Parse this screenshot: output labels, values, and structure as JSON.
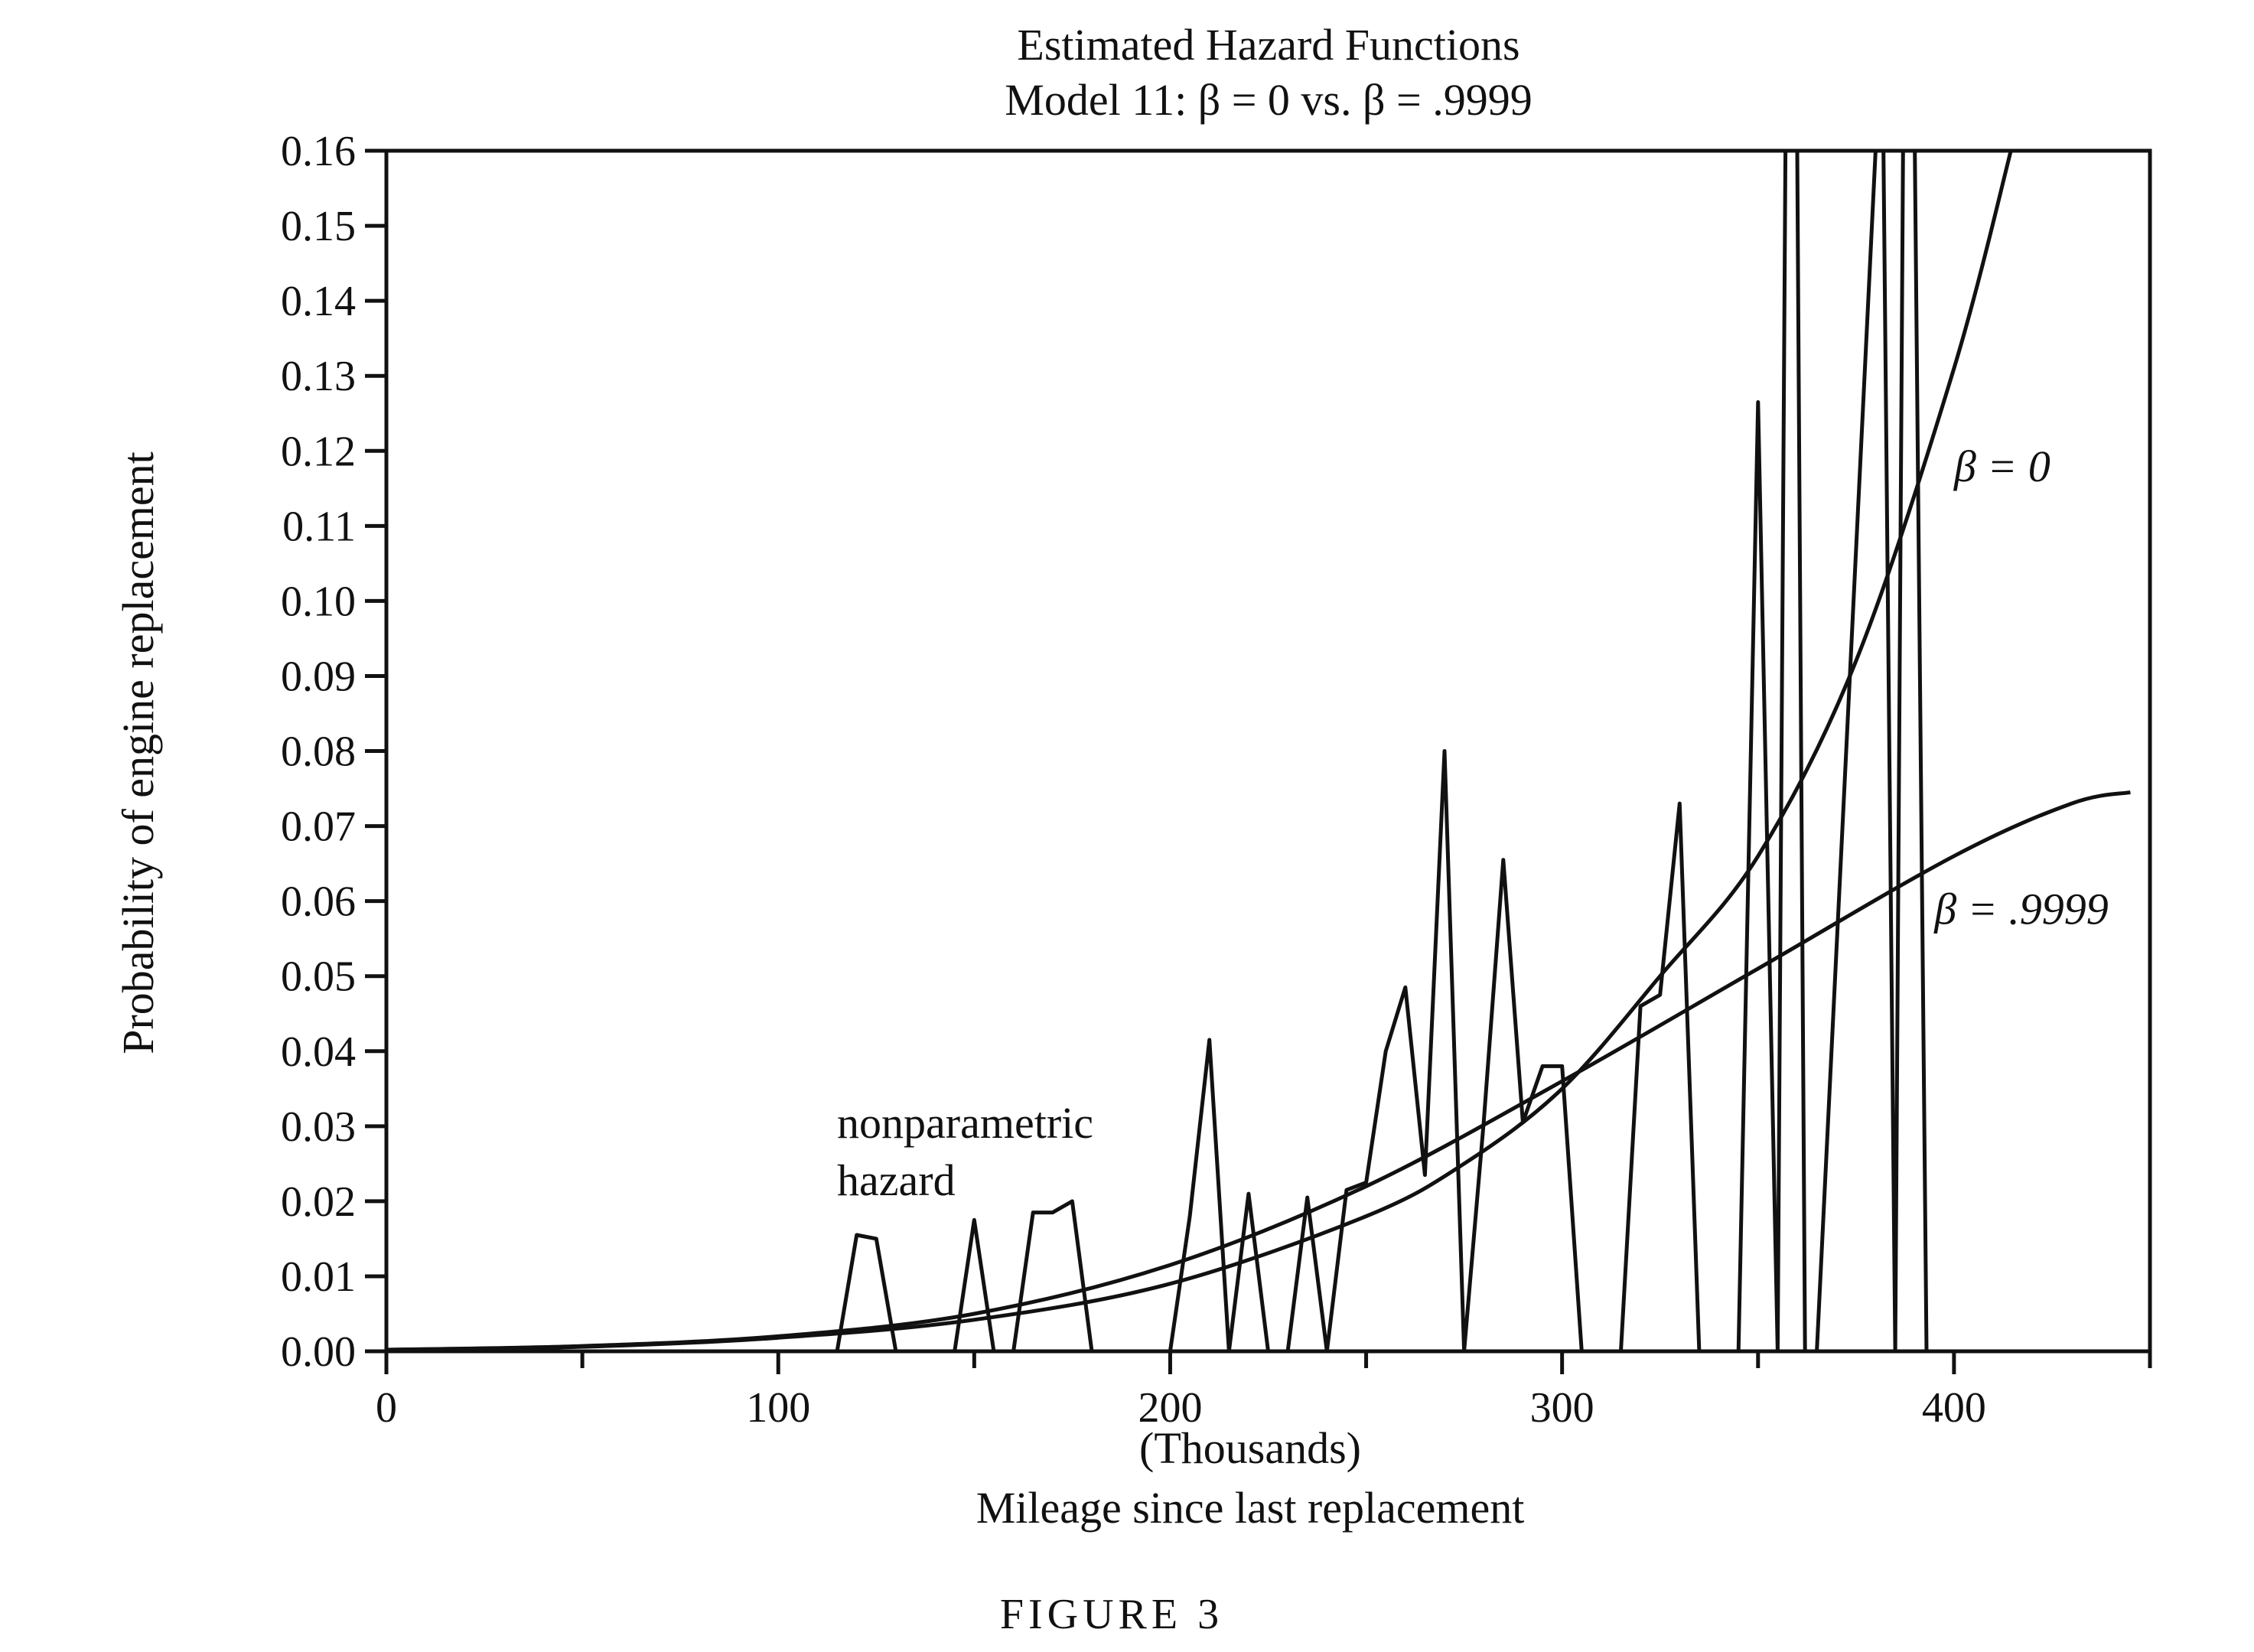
{
  "chart_data": {
    "type": "line",
    "title": "Estimated Hazard Functions",
    "subtitle": "Model 11: β = 0 vs. β = .9999",
    "ylabel": "Probability of engine replacement",
    "xlabel": "Mileage since last replacement",
    "xunit": "(Thousands)",
    "caption": "FIGURE 3",
    "xlim": [
      0,
      450
    ],
    "ylim": [
      0,
      0.16
    ],
    "x_ticks": [
      0,
      100,
      200,
      300,
      400
    ],
    "y_ticks": [
      "0.00",
      "0.01",
      "0.02",
      "0.03",
      "0.04",
      "0.05",
      "0.06",
      "0.07",
      "0.08",
      "0.09",
      "0.10",
      "0.11",
      "0.12",
      "0.13",
      "0.14",
      "0.15",
      "0.16"
    ],
    "grid": false,
    "series": [
      {
        "name": "β = 0",
        "x": [
          0,
          50,
          100,
          150,
          200,
          250,
          275,
          300,
          325,
          350,
          375,
          400,
          415
        ],
        "y": [
          0.0002,
          0.0006,
          0.0018,
          0.0042,
          0.009,
          0.018,
          0.025,
          0.035,
          0.05,
          0.066,
          0.092,
          0.131,
          0.161
        ]
      },
      {
        "name": "β = .9999",
        "x": [
          0,
          50,
          100,
          150,
          200,
          250,
          300,
          350,
          400,
          430,
          445
        ],
        "y": [
          0.0002,
          0.0007,
          0.002,
          0.005,
          0.0115,
          0.022,
          0.036,
          0.051,
          0.066,
          0.073,
          0.0745
        ]
      },
      {
        "name": "nonparametric hazard",
        "x": [
          0,
          110,
          115,
          120,
          125,
          130,
          145,
          150,
          155,
          160,
          165,
          170,
          175,
          180,
          200,
          205,
          210,
          215,
          220,
          225,
          230,
          235,
          240,
          245,
          250,
          255,
          260,
          265,
          270,
          275,
          280,
          285,
          290,
          295,
          300,
          305,
          315,
          320,
          325,
          330,
          335,
          345,
          350,
          355,
          357,
          360,
          362,
          365,
          380,
          382,
          385,
          387,
          390,
          393
        ],
        "y": [
          0,
          0,
          0,
          0.0155,
          0.015,
          0,
          0,
          0.0175,
          0,
          0,
          0.0185,
          0.0185,
          0.02,
          0,
          0,
          0.018,
          0.0415,
          0,
          0.021,
          0,
          0,
          0.0205,
          0,
          0.0215,
          0.0225,
          0.04,
          0.0485,
          0.0235,
          0.08,
          0,
          0.0305,
          0.0655,
          0.0305,
          0.038,
          0.038,
          0,
          0,
          0.046,
          0.0475,
          0.073,
          0,
          0,
          0.1265,
          0,
          0.16,
          0.16,
          0,
          0,
          0.16,
          0.16,
          0,
          0.16,
          0.16,
          0
        ]
      }
    ],
    "annotations": [
      {
        "text_lines": [
          "nonparametric",
          "hazard"
        ],
        "x": 115,
        "y": 0.03
      },
      {
        "text": "β = 0",
        "x": 400,
        "y": 0.118
      },
      {
        "text": "β = .9999",
        "x": 395,
        "y": 0.059
      }
    ]
  }
}
